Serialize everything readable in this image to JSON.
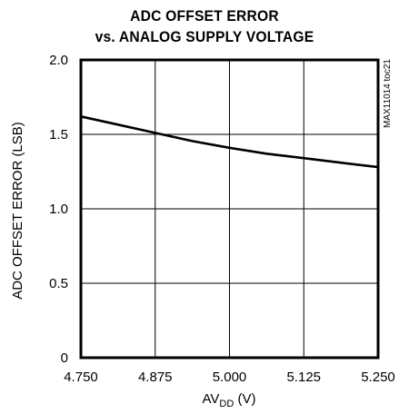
{
  "chart_data": {
    "type": "line",
    "title_line1": "ADC OFFSET ERROR",
    "title_line2": "vs. ANALOG SUPPLY VOLTAGE",
    "ylabel": "ADC OFFSET ERROR (LSB)",
    "xlabel_main": "AV",
    "xlabel_sub": "DD",
    "xlabel_unit": " (V)",
    "side_note": "MAX11014 toc21",
    "xlim": [
      4.75,
      5.25
    ],
    "ylim": [
      0,
      2.0
    ],
    "x_ticks": [
      4.75,
      4.875,
      5.0,
      5.125,
      5.25
    ],
    "x_tick_labels": [
      "4.750",
      "4.875",
      "5.000",
      "5.125",
      "5.250"
    ],
    "y_ticks": [
      0,
      0.5,
      1.0,
      1.5,
      2.0
    ],
    "y_tick_labels": [
      "0",
      "0.5",
      "1.0",
      "1.5",
      "2.0"
    ],
    "grid": true,
    "series": [
      {
        "x": [
          4.75,
          4.8125,
          4.875,
          4.9375,
          5.0,
          5.0625,
          5.125,
          5.1875,
          5.25
        ],
        "y": [
          1.62,
          1.565,
          1.51,
          1.455,
          1.41,
          1.37,
          1.34,
          1.31,
          1.28
        ]
      }
    ]
  }
}
